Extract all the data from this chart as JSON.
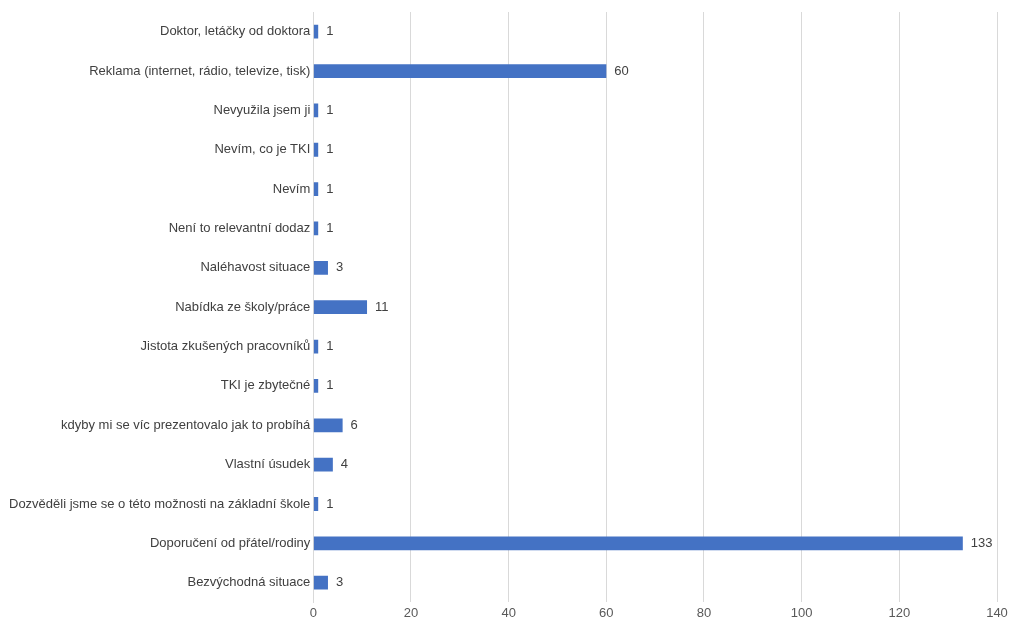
{
  "chart_data": {
    "type": "bar",
    "orientation": "horizontal",
    "categories": [
      "Doktor, letáčky od doktora",
      "Reklama (internet, rádio, televize, tisk)",
      "Nevyužila jsem ji",
      "Nevím, co je TKI",
      "Nevím",
      "Není to relevantní dodaz",
      "Naléhavost situace",
      "Nabídka ze školy/práce",
      "Jistota zkušených pracovníků",
      "TKI je zbytečné",
      "kdyby mi se víc prezentovalo jak to probíhá",
      "Vlastní úsudek",
      "Dozvěděli jsme se o této možnosti na základní škole",
      "Doporučení od přátel/rodiny",
      "Bezvýchodná situace"
    ],
    "values": [
      1,
      60,
      1,
      1,
      1,
      1,
      3,
      11,
      1,
      1,
      6,
      4,
      1,
      133,
      3
    ],
    "color": "#4472c4",
    "xlim": [
      0,
      140
    ],
    "xticks": [
      0,
      20,
      40,
      60,
      80,
      100,
      120,
      140
    ],
    "grid": "x",
    "data_labels": true
  }
}
